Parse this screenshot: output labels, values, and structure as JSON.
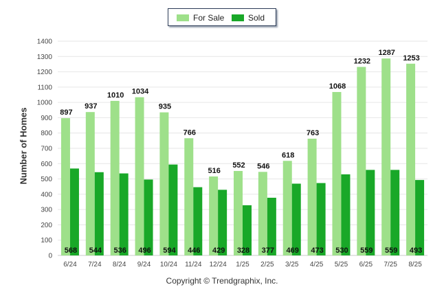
{
  "chart_data": {
    "type": "bar",
    "categories": [
      "6/24",
      "7/24",
      "8/24",
      "9/24",
      "10/24",
      "11/24",
      "12/24",
      "1/25",
      "2/25",
      "3/25",
      "4/25",
      "5/25",
      "6/25",
      "7/25",
      "8/25"
    ],
    "series": [
      {
        "name": "For Sale",
        "color": "#9ee08a",
        "values": [
          897,
          937,
          1010,
          1034,
          935,
          766,
          516,
          552,
          546,
          618,
          763,
          1068,
          1232,
          1287,
          1253
        ]
      },
      {
        "name": "Sold",
        "color": "#19a828",
        "values": [
          568,
          544,
          536,
          496,
          594,
          446,
          429,
          328,
          377,
          469,
          473,
          530,
          559,
          559,
          493
        ]
      }
    ],
    "ylabel": "Number of Homes",
    "ylim": [
      0,
      1400
    ],
    "yticks": [
      0,
      100,
      200,
      300,
      400,
      500,
      600,
      700,
      800,
      900,
      1000,
      1100,
      1200,
      1300,
      1400
    ],
    "grid": true,
    "legend": "top-center"
  },
  "footer": {
    "copyright": "Copyright © Trendgraphix, Inc."
  }
}
